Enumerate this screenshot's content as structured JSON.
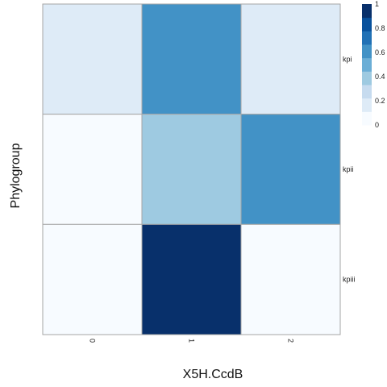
{
  "chart_data": {
    "type": "heatmap",
    "title": "",
    "xlabel": "X5H.CcdB",
    "ylabel": "Phylogroup",
    "x_categories": [
      "0",
      "1",
      "2"
    ],
    "y_categories": [
      "kpi",
      "kpii",
      "kpiii"
    ],
    "values": [
      [
        0.15,
        0.65,
        0.15
      ],
      [
        0.0,
        0.4,
        0.65
      ],
      [
        0.0,
        1.0,
        0.0
      ]
    ],
    "value_range": [
      0,
      1
    ],
    "legend": {
      "ticks": [
        "1",
        "0.8",
        "0.6",
        "0.4",
        "0.2",
        "0"
      ],
      "tick_values": [
        1,
        0.8,
        0.6,
        0.4,
        0.2,
        0
      ],
      "colors": [
        "#f7fbff",
        "#deebf7",
        "#c6dbef",
        "#9ecae1",
        "#6baed6",
        "#4292c6",
        "#2171b5",
        "#08519c",
        "#08306b"
      ]
    }
  }
}
